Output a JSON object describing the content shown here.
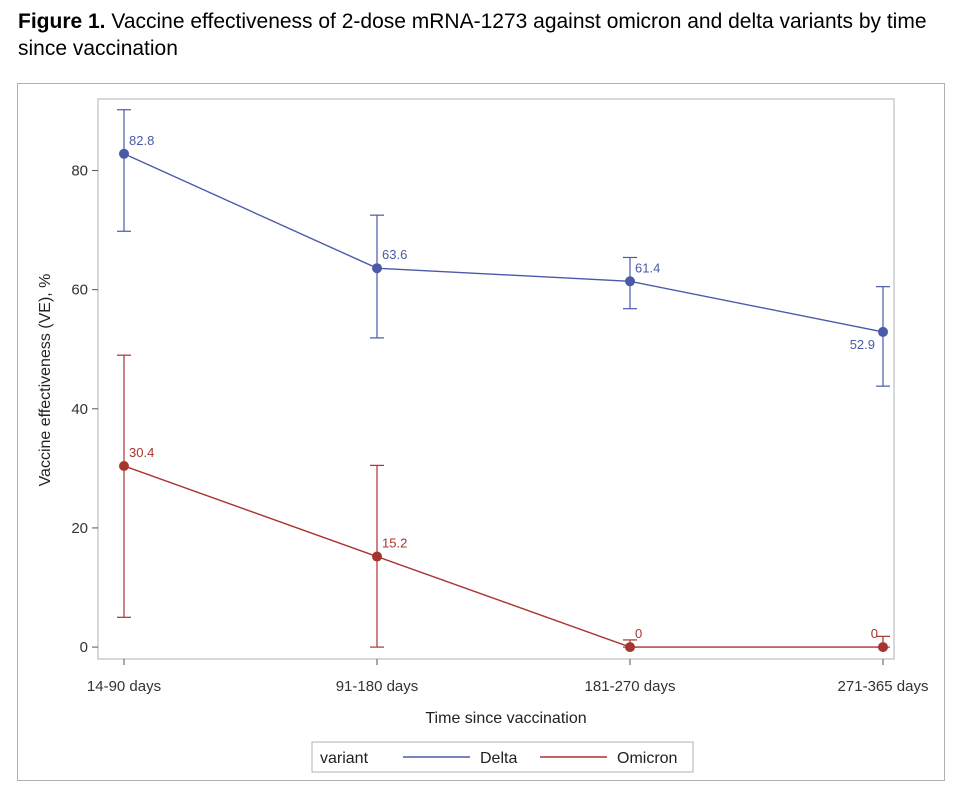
{
  "figure": {
    "label": "Figure 1.",
    "caption": "Vaccine effectiveness of 2-dose mRNA-1273 against omicron and delta variants by time since vaccination"
  },
  "colors": {
    "delta": "#4a5aa8",
    "omicron": "#a8342f",
    "axis": "#555555",
    "frame": "#b0b0b0"
  },
  "chart_data": {
    "type": "line",
    "title": "",
    "xlabel": "Time since vaccination",
    "ylabel": "Vaccine effectiveness (VE), %",
    "categories": [
      "14-90 days",
      "91-180 days",
      "181-270 days",
      "271-365 days"
    ],
    "ylim": [
      -2,
      92
    ],
    "yticks": [
      0,
      20,
      40,
      60,
      80
    ],
    "grid": false,
    "legend": {
      "title": "variant",
      "position": "bottom-center"
    },
    "series": [
      {
        "name": "Delta",
        "values": [
          82.8,
          63.6,
          61.4,
          52.9
        ],
        "labels": [
          "82.8",
          "63.6",
          "61.4",
          "52.9"
        ],
        "ci_low": [
          69.8,
          51.9,
          56.8,
          43.8
        ],
        "ci_high": [
          90.2,
          72.5,
          65.4,
          60.5
        ]
      },
      {
        "name": "Omicron",
        "values": [
          30.4,
          15.2,
          0,
          0
        ],
        "labels": [
          "30.4",
          "15.2",
          "0",
          "0"
        ],
        "ci_low": [
          5.0,
          0,
          0,
          0
        ],
        "ci_high": [
          49.0,
          30.5,
          1.2,
          1.8
        ]
      }
    ]
  }
}
